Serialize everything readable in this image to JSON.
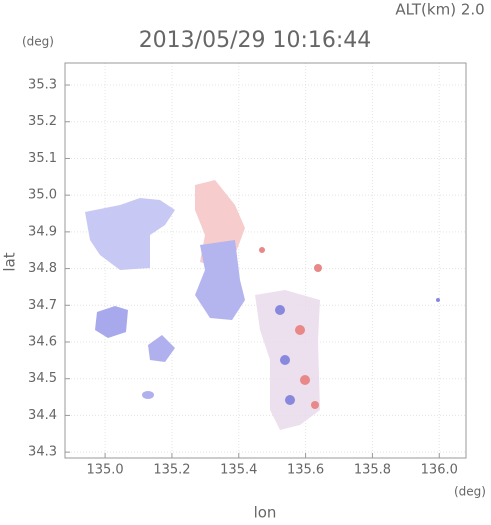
{
  "chart_data": {
    "type": "map",
    "title": "2013/05/29 10:16:44",
    "subtitle": "ALT(km) 2.0",
    "x_label": "lon",
    "y_label": "lat",
    "x_unit": "(deg)",
    "y_unit": "(deg)",
    "xlim": [
      134.88,
      136.08
    ],
    "ylim": [
      34.284,
      35.36
    ],
    "xticks": [
      {
        "value": 135,
        "label": "135.0"
      },
      135.2,
      135.4,
      135.6,
      135.8,
      {
        "value": 136,
        "label": "136.0"
      }
    ],
    "yticks": [
      34.3,
      34.4,
      34.5,
      34.6,
      34.7,
      34.8,
      34.9,
      {
        "value": 35,
        "label": "35.0"
      },
      35.1,
      35.2,
      35.3
    ],
    "grid": true
  }
}
